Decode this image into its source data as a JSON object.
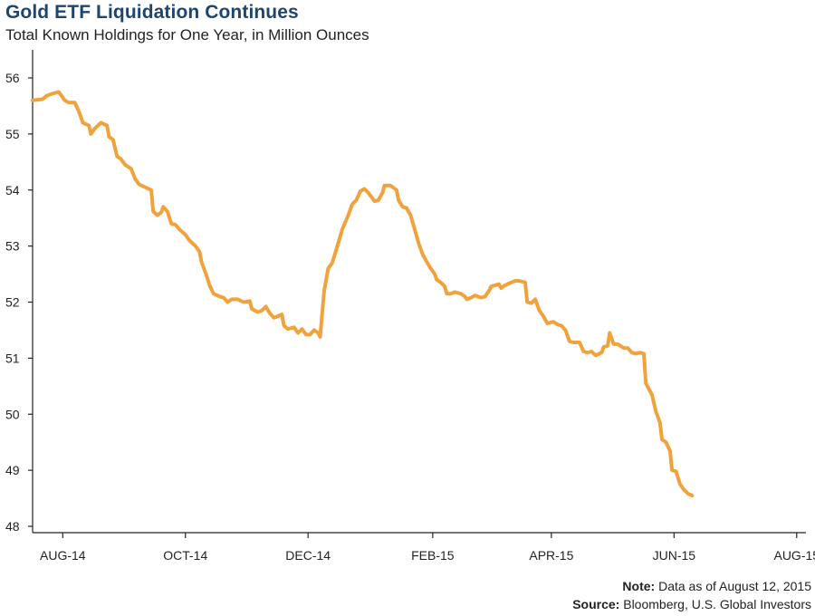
{
  "chart_data": {
    "type": "line",
    "title": "Gold ETF Liquidation Continues",
    "subtitle": "Total Known Holdings for One Year, in Million Ounces",
    "xlabel": "",
    "ylabel": "",
    "ylim": [
      48,
      56.5
    ],
    "yticks": [
      48,
      49,
      50,
      51,
      52,
      53,
      54,
      55,
      56
    ],
    "xlim": [
      "2014-07-28",
      "2015-08-13"
    ],
    "xticks": [
      {
        "date": "2014-08-12",
        "label": "AUG-14"
      },
      {
        "date": "2014-10-12",
        "label": "OCT-14"
      },
      {
        "date": "2014-12-12",
        "label": "DEC-14"
      },
      {
        "date": "2015-02-12",
        "label": "FEB-15"
      },
      {
        "date": "2015-04-12",
        "label": "APR-15"
      },
      {
        "date": "2015-06-12",
        "label": "JUN-15"
      },
      {
        "date": "2015-08-12",
        "label": "AUG-15"
      }
    ],
    "grid": false,
    "line_color": "#F0A23C",
    "series": [
      {
        "values": [
          [
            "2014-07-28",
            55.6
          ],
          [
            "2014-08-02",
            55.62
          ],
          [
            "2014-08-04",
            55.68
          ],
          [
            "2014-08-07",
            55.72
          ],
          [
            "2014-08-10",
            55.75
          ],
          [
            "2014-08-13",
            55.6
          ],
          [
            "2014-08-15",
            55.56
          ],
          [
            "2014-08-18",
            55.56
          ],
          [
            "2014-08-20",
            55.4
          ],
          [
            "2014-08-22",
            55.2
          ],
          [
            "2014-08-25",
            55.15
          ],
          [
            "2014-08-26",
            55.0
          ],
          [
            "2014-08-28",
            55.1
          ],
          [
            "2014-08-31",
            55.2
          ],
          [
            "2014-09-03",
            55.15
          ],
          [
            "2014-09-04",
            54.95
          ],
          [
            "2014-09-06",
            54.9
          ],
          [
            "2014-09-08",
            54.6
          ],
          [
            "2014-09-10",
            54.55
          ],
          [
            "2014-09-12",
            54.45
          ],
          [
            "2014-09-15",
            54.38
          ],
          [
            "2014-09-17",
            54.2
          ],
          [
            "2014-09-19",
            54.1
          ],
          [
            "2014-09-22",
            54.05
          ],
          [
            "2014-09-25",
            54.0
          ],
          [
            "2014-09-26",
            53.62
          ],
          [
            "2014-09-28",
            53.55
          ],
          [
            "2014-09-30",
            53.6
          ],
          [
            "2014-10-01",
            53.7
          ],
          [
            "2014-10-03",
            53.62
          ],
          [
            "2014-10-05",
            53.4
          ],
          [
            "2014-10-07",
            53.38
          ],
          [
            "2014-10-09",
            53.3
          ],
          [
            "2014-10-12",
            53.2
          ],
          [
            "2014-10-14",
            53.1
          ],
          [
            "2014-10-17",
            53.0
          ],
          [
            "2014-10-19",
            52.9
          ],
          [
            "2014-10-20",
            52.72
          ],
          [
            "2014-10-23",
            52.42
          ],
          [
            "2014-10-24",
            52.3
          ],
          [
            "2014-10-26",
            52.15
          ],
          [
            "2014-10-29",
            52.1
          ],
          [
            "2014-10-31",
            52.08
          ],
          [
            "2014-11-02",
            52.0
          ],
          [
            "2014-11-04",
            52.05
          ],
          [
            "2014-11-07",
            52.05
          ],
          [
            "2014-11-10",
            52.0
          ],
          [
            "2014-11-13",
            52.02
          ],
          [
            "2014-11-14",
            51.88
          ],
          [
            "2014-11-17",
            51.82
          ],
          [
            "2014-11-19",
            51.85
          ],
          [
            "2014-11-21",
            51.92
          ],
          [
            "2014-11-23",
            51.8
          ],
          [
            "2014-11-25",
            51.72
          ],
          [
            "2014-11-27",
            51.75
          ],
          [
            "2014-11-29",
            51.78
          ],
          [
            "2014-11-30",
            51.58
          ],
          [
            "2014-12-02",
            51.52
          ],
          [
            "2014-12-05",
            51.55
          ],
          [
            "2014-12-07",
            51.45
          ],
          [
            "2014-12-09",
            51.52
          ],
          [
            "2014-12-11",
            51.42
          ],
          [
            "2014-12-13",
            51.42
          ],
          [
            "2014-12-15",
            51.5
          ],
          [
            "2014-12-17",
            51.45
          ],
          [
            "2014-12-18",
            51.38
          ],
          [
            "2014-12-20",
            52.2
          ],
          [
            "2014-12-22",
            52.6
          ],
          [
            "2014-12-24",
            52.7
          ],
          [
            "2014-12-27",
            53.05
          ],
          [
            "2014-12-29",
            53.3
          ],
          [
            "2015-01-01",
            53.55
          ],
          [
            "2015-01-03",
            53.75
          ],
          [
            "2015-01-05",
            53.82
          ],
          [
            "2015-01-07",
            53.98
          ],
          [
            "2015-01-09",
            54.02
          ],
          [
            "2015-01-11",
            53.95
          ],
          [
            "2015-01-13",
            53.85
          ],
          [
            "2015-01-14",
            53.8
          ],
          [
            "2015-01-16",
            53.82
          ],
          [
            "2015-01-18",
            53.95
          ],
          [
            "2015-01-19",
            54.08
          ],
          [
            "2015-01-22",
            54.08
          ],
          [
            "2015-01-25",
            54.0
          ],
          [
            "2015-01-26",
            53.82
          ],
          [
            "2015-01-28",
            53.7
          ],
          [
            "2015-01-30",
            53.68
          ],
          [
            "2015-02-01",
            53.55
          ],
          [
            "2015-02-03",
            53.3
          ],
          [
            "2015-02-05",
            53.05
          ],
          [
            "2015-02-07",
            52.85
          ],
          [
            "2015-02-09",
            52.72
          ],
          [
            "2015-02-11",
            52.6
          ],
          [
            "2015-02-13",
            52.5
          ],
          [
            "2015-02-14",
            52.4
          ],
          [
            "2015-02-16",
            52.35
          ],
          [
            "2015-02-18",
            52.28
          ],
          [
            "2015-02-19",
            52.15
          ],
          [
            "2015-02-21",
            52.15
          ],
          [
            "2015-02-23",
            52.18
          ],
          [
            "2015-02-26",
            52.15
          ],
          [
            "2015-02-28",
            52.1
          ],
          [
            "2015-03-01",
            52.05
          ],
          [
            "2015-03-03",
            52.08
          ],
          [
            "2015-03-05",
            52.12
          ],
          [
            "2015-03-08",
            52.08
          ],
          [
            "2015-03-10",
            52.1
          ],
          [
            "2015-03-12",
            52.2
          ],
          [
            "2015-03-13",
            52.28
          ],
          [
            "2015-03-15",
            52.3
          ],
          [
            "2015-03-17",
            52.32
          ],
          [
            "2015-03-18",
            52.25
          ],
          [
            "2015-03-20",
            52.3
          ],
          [
            "2015-03-23",
            52.35
          ],
          [
            "2015-03-25",
            52.38
          ],
          [
            "2015-03-27",
            52.38
          ],
          [
            "2015-03-30",
            52.35
          ],
          [
            "2015-03-31",
            52.0
          ],
          [
            "2015-04-02",
            51.98
          ],
          [
            "2015-04-04",
            52.05
          ],
          [
            "2015-04-06",
            51.85
          ],
          [
            "2015-04-08",
            51.75
          ],
          [
            "2015-04-10",
            51.62
          ],
          [
            "2015-04-13",
            51.65
          ],
          [
            "2015-04-15",
            51.6
          ],
          [
            "2015-04-17",
            51.58
          ],
          [
            "2015-04-19",
            51.5
          ],
          [
            "2015-04-21",
            51.3
          ],
          [
            "2015-04-23",
            51.28
          ],
          [
            "2015-04-26",
            51.28
          ],
          [
            "2015-04-28",
            51.12
          ],
          [
            "2015-04-30",
            51.1
          ],
          [
            "2015-05-02",
            51.12
          ],
          [
            "2015-05-04",
            51.05
          ],
          [
            "2015-05-07",
            51.1
          ],
          [
            "2015-05-08",
            51.2
          ],
          [
            "2015-05-10",
            51.22
          ],
          [
            "2015-05-11",
            51.45
          ],
          [
            "2015-05-13",
            51.25
          ],
          [
            "2015-05-15",
            51.25
          ],
          [
            "2015-05-18",
            51.18
          ],
          [
            "2015-05-20",
            51.18
          ],
          [
            "2015-05-22",
            51.1
          ],
          [
            "2015-05-24",
            51.08
          ],
          [
            "2015-05-26",
            51.1
          ],
          [
            "2015-05-28",
            51.08
          ],
          [
            "2015-05-29",
            50.55
          ],
          [
            "2015-06-01",
            50.35
          ],
          [
            "2015-06-03",
            50.05
          ],
          [
            "2015-06-05",
            49.85
          ],
          [
            "2015-06-06",
            49.55
          ],
          [
            "2015-06-08",
            49.5
          ],
          [
            "2015-06-10",
            49.35
          ],
          [
            "2015-06-11",
            49.0
          ],
          [
            "2015-06-13",
            48.98
          ],
          [
            "2015-06-15",
            48.75
          ],
          [
            "2015-06-17",
            48.65
          ],
          [
            "2015-06-19",
            48.58
          ],
          [
            "2015-06-21",
            48.55
          ]
        ]
      }
    ]
  },
  "notes": {
    "note_label": "Note:",
    "note_text": "Data as of August 12, 2015",
    "source_label": "Source:",
    "source_text": "Bloomberg, U.S. Global Investors"
  }
}
